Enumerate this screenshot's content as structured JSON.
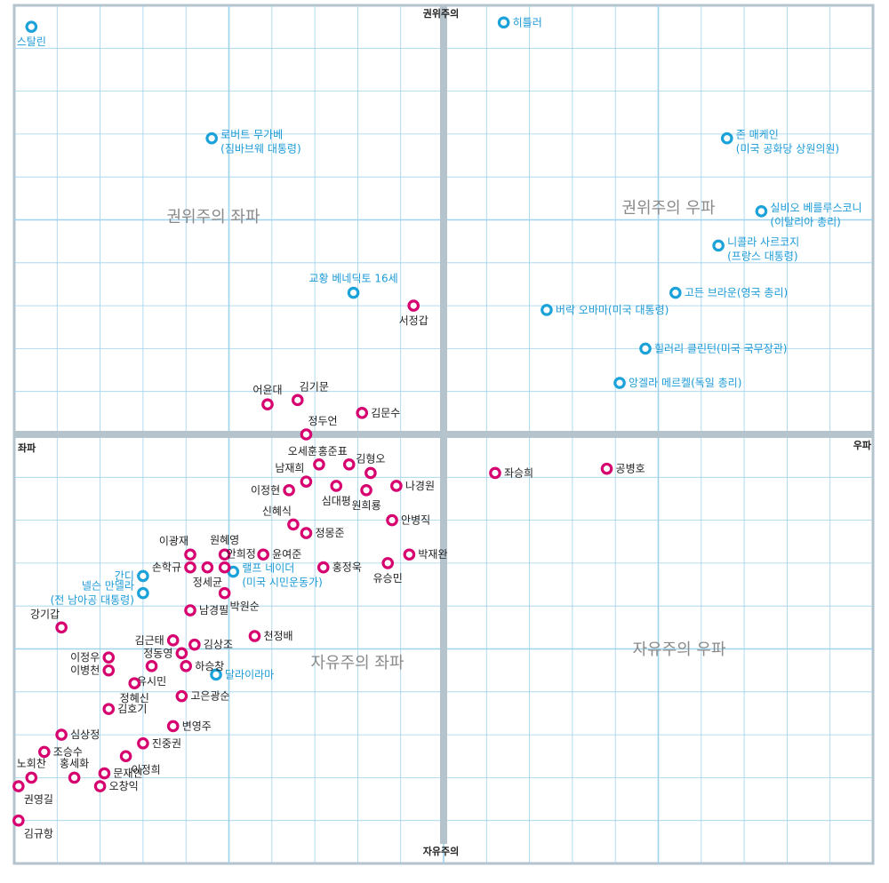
{
  "chart_data": {
    "type": "scatter",
    "title": "",
    "xlabel_left": "좌파",
    "xlabel_right": "우파",
    "ylabel_top": "권위주의",
    "ylabel_bottom": "자유주의",
    "xlim": [
      -10,
      10
    ],
    "ylim": [
      -10,
      10
    ],
    "grid": true,
    "colors": {
      "politician": "#d6006f",
      "world": "#1ba2d9",
      "grid": "#9fd2ec",
      "axis": "#b5c3cc",
      "label_world": "#1b9ad6",
      "label_politician": "#222222"
    },
    "quadrants": [
      {
        "name": "top-left",
        "label": "권위주의 좌파"
      },
      {
        "name": "top-right",
        "label": "권위주의 우파"
      },
      {
        "name": "bottom-left",
        "label": "자유주의 좌파"
      },
      {
        "name": "bottom-right",
        "label": "자유주의 우파"
      }
    ],
    "series": [
      {
        "name": "world",
        "points": [
          {
            "label": [
              "스탈린"
            ],
            "x": -9.6,
            "y": 9.5,
            "pos": "below"
          },
          {
            "label": [
              "히틀러"
            ],
            "x": 1.4,
            "y": 9.6,
            "pos": "right"
          },
          {
            "label": [
              "로버트 무가베",
              "(짐바브웨 대통령)"
            ],
            "x": -5.4,
            "y": 6.9,
            "pos": "right"
          },
          {
            "label": [
              "존 매케인",
              "(미국 공화당 상원의원)"
            ],
            "x": 6.6,
            "y": 6.9,
            "pos": "right"
          },
          {
            "label": [
              "실비오 베를루스코니",
              "(이탈리아 총리)"
            ],
            "x": 7.4,
            "y": 5.2,
            "pos": "right"
          },
          {
            "label": [
              "니콜라 사르코지",
              "(프랑스 대통령)"
            ],
            "x": 6.4,
            "y": 4.4,
            "pos": "right"
          },
          {
            "label": [
              "교황 베네딕토 16세"
            ],
            "x": -2.1,
            "y": 3.3,
            "pos": "above"
          },
          {
            "label": [
              "고든 브라운(영국 총리)"
            ],
            "x": 5.4,
            "y": 3.3,
            "pos": "right"
          },
          {
            "label": [
              "버락 오바마(미국 대통령)"
            ],
            "x": 2.4,
            "y": 2.9,
            "pos": "right"
          },
          {
            "label": [
              "힐러리 클린턴(미국 국무장관)"
            ],
            "x": 4.7,
            "y": 2.0,
            "pos": "right"
          },
          {
            "label": [
              "앙겔라 메르켈(독일 총리)"
            ],
            "x": 4.1,
            "y": 1.2,
            "pos": "right"
          },
          {
            "label": [
              "간디"
            ],
            "x": -7.0,
            "y": -3.3,
            "pos": "left"
          },
          {
            "label": [
              "넬슨 만델라",
              "(전 남아공 대통령)"
            ],
            "x": -7.0,
            "y": -3.7,
            "pos": "left"
          },
          {
            "label": [
              "랠프 네이더",
              "(미국 시민운동가)"
            ],
            "x": -4.9,
            "y": -3.2,
            "pos": "right"
          },
          {
            "label": [
              "달라이라마"
            ],
            "x": -5.3,
            "y": -5.6,
            "pos": "right"
          }
        ]
      },
      {
        "name": "politician",
        "points": [
          {
            "label": [
              "서정갑"
            ],
            "x": -0.7,
            "y": 3.0,
            "pos": "below"
          },
          {
            "label": [
              "어윤대"
            ],
            "x": -4.1,
            "y": 0.7,
            "pos": "above"
          },
          {
            "label": [
              "김기문"
            ],
            "x": -3.4,
            "y": 0.8,
            "pos": "above-right"
          },
          {
            "label": [
              "김문수"
            ],
            "x": -1.9,
            "y": 0.5,
            "pos": "right"
          },
          {
            "label": [
              "정두언"
            ],
            "x": -3.2,
            "y": 0.0,
            "pos": "above-right"
          },
          {
            "label": [
              "좌승희"
            ],
            "x": 1.2,
            "y": -0.9,
            "pos": "right"
          },
          {
            "label": [
              "공병호"
            ],
            "x": 3.8,
            "y": -0.8,
            "pos": "right"
          },
          {
            "label": [
              "오세훈"
            ],
            "x": -2.9,
            "y": -0.7,
            "pos": "above-left"
          },
          {
            "label": [
              "홍준표"
            ],
            "x": -2.2,
            "y": -0.7,
            "pos": "above-left"
          },
          {
            "label": [
              "김형오"
            ],
            "x": -1.7,
            "y": -0.9,
            "pos": "above"
          },
          {
            "label": [
              "남재희"
            ],
            "x": -3.2,
            "y": -1.1,
            "pos": "above-left"
          },
          {
            "label": [
              "이정현"
            ],
            "x": -3.6,
            "y": -1.3,
            "pos": "left"
          },
          {
            "label": [
              "심대평"
            ],
            "x": -2.5,
            "y": -1.2,
            "pos": "below"
          },
          {
            "label": [
              "원희룡"
            ],
            "x": -1.8,
            "y": -1.3,
            "pos": "below"
          },
          {
            "label": [
              "나경원"
            ],
            "x": -1.1,
            "y": -1.2,
            "pos": "right"
          },
          {
            "label": [
              "안병직"
            ],
            "x": -1.2,
            "y": -2.0,
            "pos": "right"
          },
          {
            "label": [
              "신혜식"
            ],
            "x": -3.5,
            "y": -2.1,
            "pos": "above-left"
          },
          {
            "label": [
              "정몽준"
            ],
            "x": -3.2,
            "y": -2.3,
            "pos": "right"
          },
          {
            "label": [
              "원혜영"
            ],
            "x": -5.1,
            "y": -2.8,
            "pos": "above"
          },
          {
            "label": [
              "윤여준"
            ],
            "x": -4.2,
            "y": -2.8,
            "pos": "right"
          },
          {
            "label": [
              "박재완"
            ],
            "x": -0.8,
            "y": -2.8,
            "pos": "right"
          },
          {
            "label": [
              "이광재"
            ],
            "x": -5.9,
            "y": -2.8,
            "pos": "above-left"
          },
          {
            "label": [
              "손학규"
            ],
            "x": -5.9,
            "y": -3.1,
            "pos": "left"
          },
          {
            "label": [
              "안희정"
            ],
            "x": -5.1,
            "y": -3.1,
            "pos": "above-right"
          },
          {
            "label": [
              "정세균"
            ],
            "x": -5.5,
            "y": -3.1,
            "pos": "below"
          },
          {
            "label": [
              "홍정욱"
            ],
            "x": -2.8,
            "y": -3.1,
            "pos": "right"
          },
          {
            "label": [
              "유승민"
            ],
            "x": -1.3,
            "y": -3.0,
            "pos": "below"
          },
          {
            "label": [
              "박원순"
            ],
            "x": -5.1,
            "y": -3.7,
            "pos": "below-right"
          },
          {
            "label": [
              "남경필"
            ],
            "x": -5.9,
            "y": -4.1,
            "pos": "right"
          },
          {
            "label": [
              "강기갑"
            ],
            "x": -8.9,
            "y": -4.5,
            "pos": "above-left"
          },
          {
            "label": [
              "천정배"
            ],
            "x": -4.4,
            "y": -4.7,
            "pos": "right"
          },
          {
            "label": [
              "김근태"
            ],
            "x": -6.3,
            "y": -4.8,
            "pos": "left"
          },
          {
            "label": [
              "김상조"
            ],
            "x": -5.8,
            "y": -4.9,
            "pos": "right"
          },
          {
            "label": [
              "정동영"
            ],
            "x": -6.1,
            "y": -5.1,
            "pos": "left"
          },
          {
            "label": [
              "이정우"
            ],
            "x": -7.8,
            "y": -5.2,
            "pos": "left"
          },
          {
            "label": [
              "이병천"
            ],
            "x": -7.8,
            "y": -5.5,
            "pos": "left"
          },
          {
            "label": [
              "유시민"
            ],
            "x": -6.8,
            "y": -5.4,
            "pos": "below"
          },
          {
            "label": [
              "하승창"
            ],
            "x": -6.0,
            "y": -5.4,
            "pos": "right"
          },
          {
            "label": [
              "정혜신"
            ],
            "x": -7.2,
            "y": -5.8,
            "pos": "below"
          },
          {
            "label": [
              "김호기"
            ],
            "x": -7.8,
            "y": -6.4,
            "pos": "right"
          },
          {
            "label": [
              "고은광순"
            ],
            "x": -6.1,
            "y": -6.1,
            "pos": "right"
          },
          {
            "label": [
              "변영주"
            ],
            "x": -6.3,
            "y": -6.8,
            "pos": "right"
          },
          {
            "label": [
              "심상정"
            ],
            "x": -8.9,
            "y": -7.0,
            "pos": "right"
          },
          {
            "label": [
              "조승수"
            ],
            "x": -9.3,
            "y": -7.4,
            "pos": "right"
          },
          {
            "label": [
              "진중권"
            ],
            "x": -7.0,
            "y": -7.2,
            "pos": "right"
          },
          {
            "label": [
              "이정희"
            ],
            "x": -7.4,
            "y": -7.5,
            "pos": "below-right"
          },
          {
            "label": [
              "노회찬"
            ],
            "x": -9.6,
            "y": -8.0,
            "pos": "above"
          },
          {
            "label": [
              "문재인"
            ],
            "x": -7.9,
            "y": -7.9,
            "pos": "right"
          },
          {
            "label": [
              "홍세화"
            ],
            "x": -8.6,
            "y": -8.0,
            "pos": "above"
          },
          {
            "label": [
              "오창익"
            ],
            "x": -8.0,
            "y": -8.2,
            "pos": "right"
          },
          {
            "label": [
              "권영길"
            ],
            "x": -9.9,
            "y": -8.2,
            "pos": "below-right"
          },
          {
            "label": [
              "김규항"
            ],
            "x": -9.9,
            "y": -9.0,
            "pos": "below-right"
          }
        ]
      }
    ]
  }
}
